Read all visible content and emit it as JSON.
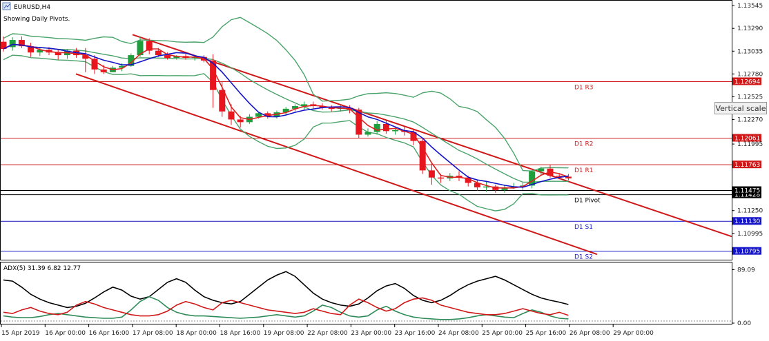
{
  "window": {
    "title": "EURUSD,H4",
    "subtitle": "Showing Daily Pivots.",
    "tooltip": "Vertical scale"
  },
  "colors": {
    "bull": "#1e9e3c",
    "bear": "#e8141e",
    "channel": "#d01818",
    "bollinger": "#4aa36a",
    "ma_fast": "#e02020",
    "ma_slow": "#1414c8",
    "resistance": "#d01818",
    "support": "#1414c8",
    "adx_main": "#000000",
    "adx_plus": "#2e8b57",
    "adx_minus": "#d01818"
  },
  "chart_data": [
    {
      "type": "candlestick",
      "symbol": "EURUSD",
      "timeframe": "H4",
      "ylim": [
        1.107,
        1.136
      ],
      "y_ticks": [
        1.13545,
        1.1329,
        1.13035,
        1.1278,
        1.12525,
        1.1227,
        1.11995,
        1.1125,
        1.10995
      ],
      "x_tick_labels": [
        "15 Apr 2019",
        "16 Apr 00:00",
        "16 Apr 16:00",
        "17 Apr 08:00",
        "18 Apr 00:00",
        "18 Apr 16:00",
        "19 Apr 08:00",
        "22 Apr 08:00",
        "23 Apr 00:00",
        "23 Apr 16:00",
        "24 Apr 08:00",
        "25 Apr 00:00",
        "25 Apr 16:00",
        "26 Apr 08:00",
        "29 Apr 00:00"
      ],
      "candles": [
        [
          1.1314,
          1.132,
          1.1303,
          1.1306
        ],
        [
          1.1308,
          1.1319,
          1.1304,
          1.1316
        ],
        [
          1.1316,
          1.132,
          1.1307,
          1.1309
        ],
        [
          1.1309,
          1.1313,
          1.1297,
          1.1302
        ],
        [
          1.1302,
          1.1308,
          1.1298,
          1.1305
        ],
        [
          1.1305,
          1.1308,
          1.1299,
          1.1302
        ],
        [
          1.1302,
          1.1305,
          1.1294,
          1.1299
        ],
        [
          1.1299,
          1.1306,
          1.1295,
          1.1304
        ],
        [
          1.1304,
          1.1307,
          1.1296,
          1.1299
        ],
        [
          1.1299,
          1.1307,
          1.128,
          1.1295
        ],
        [
          1.1295,
          1.1299,
          1.1278,
          1.1283
        ],
        [
          1.1283,
          1.1288,
          1.1278,
          1.128
        ],
        [
          1.128,
          1.1287,
          1.128,
          1.1285
        ],
        [
          1.1285,
          1.129,
          1.1281,
          1.1287
        ],
        [
          1.1287,
          1.1301,
          1.1286,
          1.1299
        ],
        [
          1.1299,
          1.132,
          1.1297,
          1.1315
        ],
        [
          1.1315,
          1.1318,
          1.13,
          1.1304
        ],
        [
          1.1304,
          1.1307,
          1.1297,
          1.1299
        ],
        [
          1.1299,
          1.1302,
          1.1294,
          1.1296
        ],
        [
          1.1296,
          1.1299,
          1.1294,
          1.1298
        ],
        [
          1.1298,
          1.1301,
          1.1294,
          1.1296
        ],
        [
          1.1296,
          1.1299,
          1.1293,
          1.1297
        ],
        [
          1.1297,
          1.1299,
          1.1291,
          1.1293
        ],
        [
          1.1293,
          1.13,
          1.124,
          1.126
        ],
        [
          1.126,
          1.127,
          1.123,
          1.1236
        ],
        [
          1.1236,
          1.1244,
          1.1221,
          1.1227
        ],
        [
          1.1227,
          1.1231,
          1.1218,
          1.1224
        ],
        [
          1.1224,
          1.1233,
          1.1222,
          1.123
        ],
        [
          1.123,
          1.1235,
          1.1228,
          1.1234
        ],
        [
          1.1234,
          1.1236,
          1.1228,
          1.123
        ],
        [
          1.123,
          1.1237,
          1.1228,
          1.1235
        ],
        [
          1.1235,
          1.1241,
          1.1232,
          1.1239
        ],
        [
          1.1239,
          1.1244,
          1.1236,
          1.1242
        ],
        [
          1.1242,
          1.1247,
          1.1238,
          1.1244
        ],
        [
          1.1244,
          1.1247,
          1.1239,
          1.1242
        ],
        [
          1.1242,
          1.1245,
          1.1238,
          1.124
        ],
        [
          1.124,
          1.1243,
          1.1236,
          1.1239
        ],
        [
          1.1239,
          1.1244,
          1.1236,
          1.124
        ],
        [
          1.124,
          1.1243,
          1.1234,
          1.1238
        ],
        [
          1.1238,
          1.124,
          1.1206,
          1.121
        ],
        [
          1.121,
          1.1217,
          1.1208,
          1.1213
        ],
        [
          1.1213,
          1.1225,
          1.121,
          1.1222
        ],
        [
          1.1222,
          1.1226,
          1.1211,
          1.1214
        ],
        [
          1.1214,
          1.1218,
          1.121,
          1.1215
        ],
        [
          1.1215,
          1.1219,
          1.1209,
          1.1213
        ],
        [
          1.1213,
          1.1217,
          1.1198,
          1.1203
        ],
        [
          1.1203,
          1.1206,
          1.1166,
          1.117
        ],
        [
          1.117,
          1.1178,
          1.1154,
          1.1162
        ],
        [
          1.1162,
          1.1166,
          1.1156,
          1.1161
        ],
        [
          1.1161,
          1.1167,
          1.1158,
          1.1164
        ],
        [
          1.1164,
          1.1169,
          1.1158,
          1.1162
        ],
        [
          1.1162,
          1.1164,
          1.1152,
          1.1156
        ],
        [
          1.1156,
          1.1159,
          1.1147,
          1.1151
        ],
        [
          1.1151,
          1.1158,
          1.1146,
          1.1152
        ],
        [
          1.1152,
          1.1154,
          1.1145,
          1.1148
        ],
        [
          1.1148,
          1.1154,
          1.1145,
          1.1151
        ],
        [
          1.1151,
          1.1156,
          1.1149,
          1.1152
        ],
        [
          1.1152,
          1.1156,
          1.1148,
          1.1153
        ],
        [
          1.1153,
          1.117,
          1.115,
          1.1169
        ],
        [
          1.1169,
          1.1174,
          1.1164,
          1.1172
        ],
        [
          1.1172,
          1.1176,
          1.1162,
          1.1164
        ],
        [
          1.1164,
          1.1167,
          1.116,
          1.1163
        ],
        [
          1.1163,
          1.1166,
          1.1159,
          1.1161
        ]
      ],
      "pivot_levels": [
        {
          "label": "D1 R3",
          "price_label": "1.12694",
          "value": 1.12694
        },
        {
          "label": "D1 R2",
          "price_label": "1.12061",
          "value": 1.12061
        },
        {
          "label": "D1 R1",
          "price_label": "1.11763",
          "value": 1.11763
        },
        {
          "label": "D1 Pivot",
          "price_label": "1.11428",
          "value": 1.11428
        },
        {
          "label": "D1 S1",
          "price_label": "1.11130",
          "value": 1.1113
        },
        {
          "label": "D1 S2",
          "price_label": "1.10795",
          "value": 1.10795
        }
      ],
      "current_price_label": "1.11475",
      "current_price": 1.11475
    },
    {
      "type": "line",
      "title": "ADX(5) 31.39 6.82 12.77",
      "ylim": [
        0,
        100
      ],
      "y_ticks": [
        89.09,
        0.0
      ],
      "y_tick_labels": [
        "89.09",
        "0.00"
      ],
      "series": [
        {
          "name": "",
          "values": [
            72,
            70,
            60,
            48,
            40,
            34,
            30,
            26,
            28,
            33,
            42,
            52,
            60,
            55,
            45,
            40,
            44,
            56,
            68,
            74,
            68,
            55,
            44,
            38,
            34,
            32,
            36,
            48,
            60,
            72,
            80,
            86,
            78,
            64,
            50,
            40,
            34,
            30,
            28,
            32,
            42,
            54,
            62,
            66,
            58,
            46,
            38,
            34,
            38,
            46,
            56,
            64,
            70,
            74,
            78,
            72,
            64,
            56,
            48,
            42,
            38,
            35,
            31
          ]
        },
        {
          "name": "",
          "values": [
            12,
            10,
            9,
            9,
            11,
            14,
            16,
            14,
            12,
            10,
            9,
            8,
            8,
            10,
            22,
            36,
            44,
            38,
            26,
            18,
            14,
            12,
            12,
            11,
            10,
            9,
            8,
            9,
            10,
            12,
            14,
            12,
            10,
            12,
            20,
            30,
            26,
            18,
            12,
            10,
            12,
            22,
            28,
            20,
            14,
            10,
            8,
            7,
            6,
            6,
            7,
            9,
            12,
            14,
            12,
            10,
            9,
            16,
            22,
            18,
            12,
            8,
            7
          ]
        },
        {
          "name": "",
          "values": [
            18,
            16,
            22,
            26,
            20,
            16,
            14,
            18,
            30,
            36,
            32,
            26,
            22,
            18,
            14,
            12,
            12,
            14,
            20,
            30,
            36,
            32,
            26,
            22,
            34,
            38,
            34,
            30,
            26,
            22,
            20,
            18,
            16,
            18,
            24,
            20,
            16,
            14,
            30,
            40,
            34,
            26,
            20,
            24,
            34,
            40,
            42,
            38,
            30,
            26,
            22,
            18,
            16,
            14,
            14,
            16,
            20,
            24,
            20,
            16,
            14,
            18,
            13
          ]
        }
      ]
    }
  ]
}
